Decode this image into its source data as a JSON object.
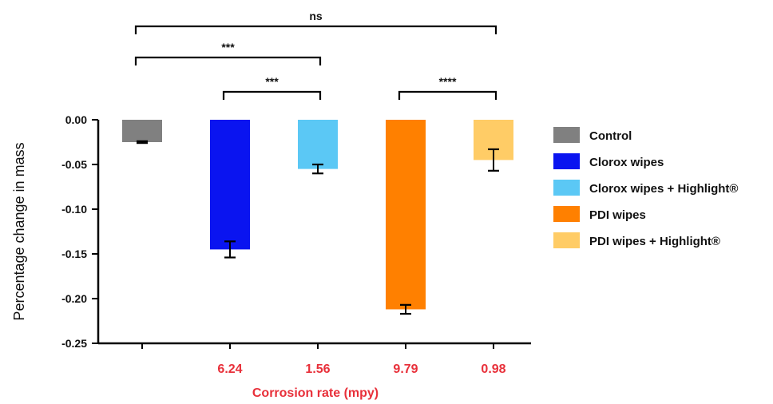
{
  "chart_data": {
    "type": "bar",
    "ylabel": "Percentage change in mass",
    "xlabel": "Corrosion rate (mpy)",
    "ylim": [
      -0.25,
      0.0
    ],
    "yticks": [
      0.0,
      -0.05,
      -0.1,
      -0.15,
      -0.2,
      -0.25
    ],
    "ytick_labels": [
      "0.00",
      "-0.05",
      "-0.10",
      "-0.15",
      "-0.20",
      "-0.25"
    ],
    "grid": false,
    "legend_position": "right",
    "label_color": "#e8303a",
    "bars": [
      {
        "name": "Control",
        "value": -0.025,
        "error": 0.001,
        "color": "#808080",
        "corrosion_rate": ""
      },
      {
        "name": "Clorox wipes",
        "value": -0.145,
        "error": 0.009,
        "color": "#0a14f0",
        "corrosion_rate": "6.24"
      },
      {
        "name": "Clorox wipes + Highlight®",
        "value": -0.055,
        "error": 0.005,
        "color": "#5bc8f5",
        "corrosion_rate": "1.56"
      },
      {
        "name": "PDI wipes",
        "value": -0.212,
        "error": 0.005,
        "color": "#ff8000",
        "corrosion_rate": "9.79"
      },
      {
        "name": "PDI wipes + Highlight®",
        "value": -0.045,
        "error": 0.012,
        "color": "#ffcc66",
        "corrosion_rate": "0.98"
      }
    ],
    "significance": [
      {
        "from": 0,
        "to": 4,
        "label": "ns"
      },
      {
        "from": 0,
        "to": 2,
        "label": "***"
      },
      {
        "from": 1,
        "to": 2,
        "label": "***"
      },
      {
        "from": 3,
        "to": 4,
        "label": "****"
      }
    ]
  }
}
